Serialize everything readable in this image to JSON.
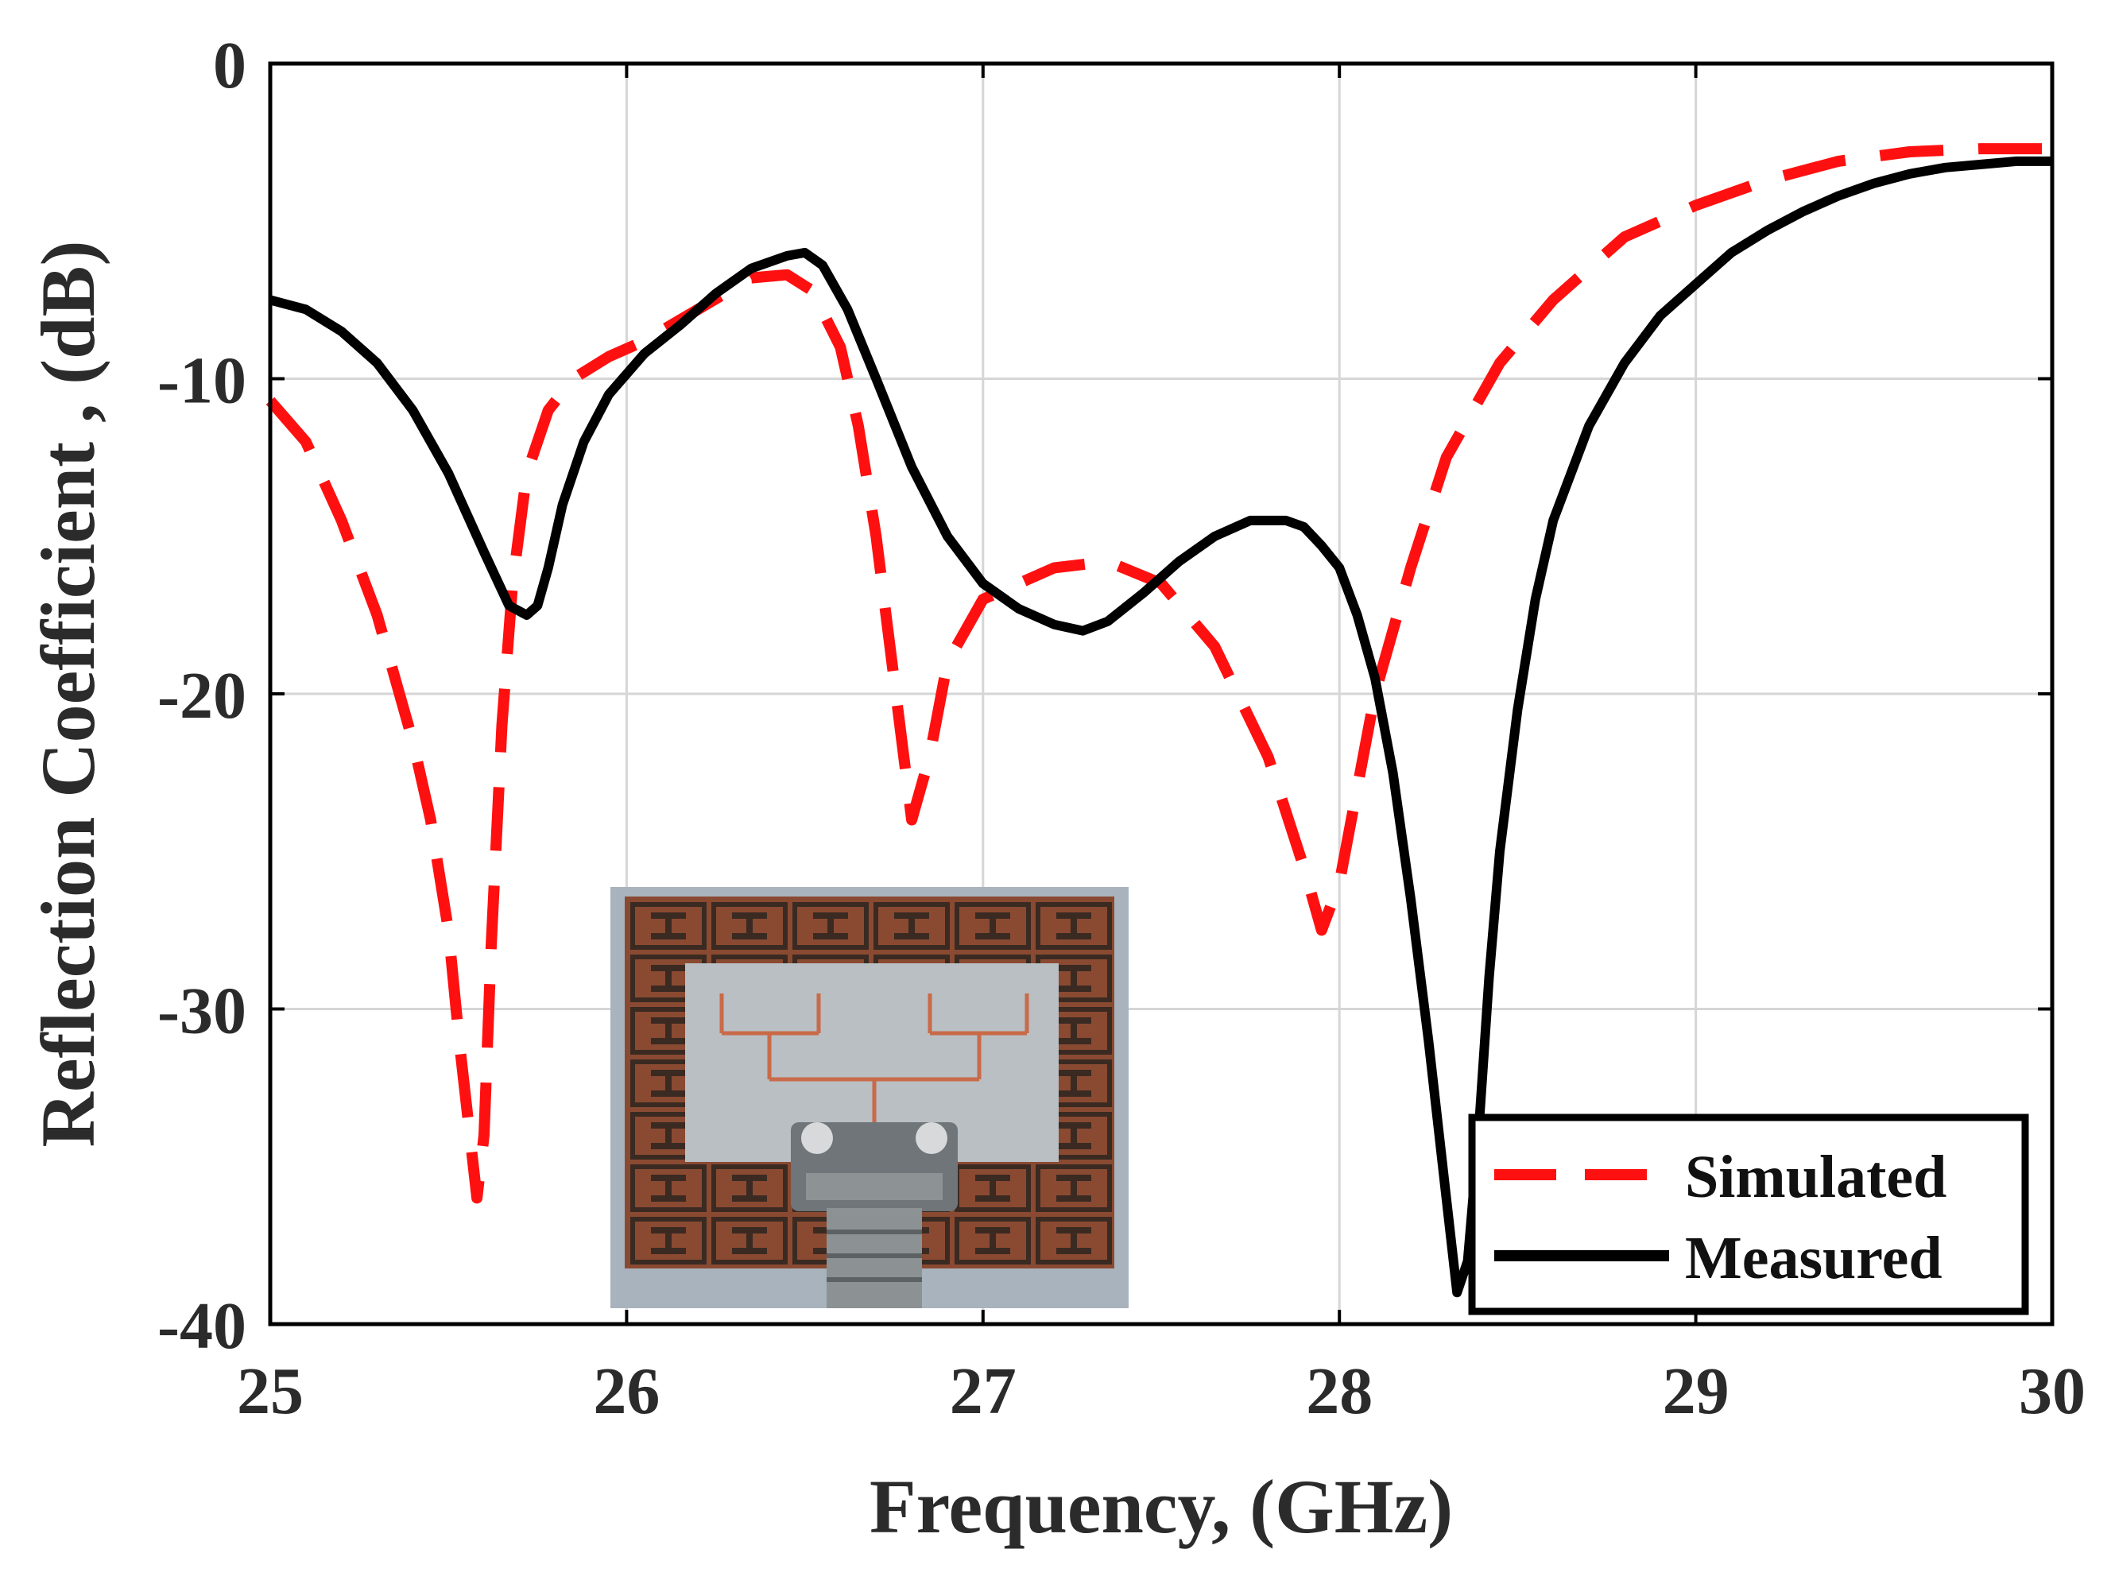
{
  "chart_data": {
    "type": "line",
    "title": "",
    "xlabel": "Frequency, (GHz)",
    "ylabel": "Reflection Coefficient , (dB)",
    "xlim": [
      25,
      30
    ],
    "ylim": [
      -40,
      0
    ],
    "xticks": [
      25,
      26,
      27,
      28,
      29,
      30
    ],
    "yticks": [
      0,
      -10,
      -20,
      -30,
      -40
    ],
    "grid": true,
    "legend_position": "bottom-right",
    "inset_image": "photo of fabricated antenna array prototype with end-launch connector",
    "series": [
      {
        "name": "Simulated",
        "color": "#ff1010",
        "style": "dashed",
        "x": [
          25.0,
          25.1,
          25.2,
          25.3,
          25.4,
          25.45,
          25.5,
          25.53,
          25.56,
          25.58,
          25.6,
          25.62,
          25.65,
          25.68,
          25.72,
          25.78,
          25.85,
          25.95,
          26.05,
          26.2,
          26.35,
          26.45,
          26.52,
          26.6,
          26.65,
          26.7,
          26.75,
          26.8,
          26.85,
          26.9,
          27.0,
          27.1,
          27.2,
          27.35,
          27.5,
          27.65,
          27.8,
          27.9,
          27.95,
          28.0,
          28.05,
          28.1,
          28.2,
          28.3,
          28.45,
          28.6,
          28.8,
          29.0,
          29.2,
          29.4,
          29.6,
          29.8,
          30.0
        ],
        "y": [
          -10.7,
          -12.0,
          -14.5,
          -17.5,
          -21.5,
          -24.0,
          -27.5,
          -31.0,
          -34.0,
          -36.0,
          -34.0,
          -28.0,
          -21.0,
          -16.5,
          -13.0,
          -11.0,
          -10.0,
          -9.3,
          -8.8,
          -7.8,
          -6.8,
          -6.7,
          -7.2,
          -9.0,
          -11.5,
          -15.0,
          -19.5,
          -24.0,
          -22.0,
          -19.0,
          -17.0,
          -16.5,
          -16.0,
          -15.8,
          -16.5,
          -18.5,
          -22.0,
          -25.5,
          -27.5,
          -26.0,
          -23.0,
          -20.0,
          -16.0,
          -12.5,
          -9.5,
          -7.5,
          -5.5,
          -4.5,
          -3.7,
          -3.1,
          -2.8,
          -2.7,
          -2.7
        ]
      },
      {
        "name": "Measured",
        "color": "#000000",
        "style": "solid",
        "x": [
          25.0,
          25.1,
          25.2,
          25.3,
          25.4,
          25.5,
          25.6,
          25.67,
          25.72,
          25.75,
          25.78,
          25.82,
          25.88,
          25.95,
          26.05,
          26.15,
          26.25,
          26.35,
          26.45,
          26.5,
          26.55,
          26.62,
          26.7,
          26.8,
          26.9,
          27.0,
          27.1,
          27.2,
          27.28,
          27.35,
          27.45,
          27.55,
          27.65,
          27.75,
          27.85,
          27.9,
          27.95,
          28.0,
          28.05,
          28.1,
          28.15,
          28.2,
          28.25,
          28.3,
          28.33,
          28.36,
          28.39,
          28.42,
          28.45,
          28.5,
          28.55,
          28.6,
          28.7,
          28.8,
          28.9,
          29.0,
          29.1,
          29.2,
          29.3,
          29.4,
          29.5,
          29.6,
          29.7,
          29.8,
          29.9,
          30.0
        ],
        "y": [
          -7.5,
          -7.8,
          -8.5,
          -9.5,
          -11.0,
          -13.0,
          -15.5,
          -17.2,
          -17.5,
          -17.2,
          -16.0,
          -14.0,
          -12.0,
          -10.5,
          -9.2,
          -8.3,
          -7.3,
          -6.5,
          -6.1,
          -6.0,
          -6.4,
          -7.8,
          -10.0,
          -12.8,
          -15.0,
          -16.5,
          -17.3,
          -17.8,
          -18.0,
          -17.7,
          -16.8,
          -15.8,
          -15.0,
          -14.5,
          -14.5,
          -14.7,
          -15.3,
          -16.0,
          -17.5,
          -19.5,
          -22.5,
          -26.5,
          -31.0,
          -36.0,
          -39.0,
          -38.0,
          -34.0,
          -29.0,
          -25.0,
          -20.5,
          -17.0,
          -14.5,
          -11.5,
          -9.5,
          -8.0,
          -7.0,
          -6.0,
          -5.3,
          -4.7,
          -4.2,
          -3.8,
          -3.5,
          -3.3,
          -3.2,
          -3.1,
          -3.1
        ]
      }
    ]
  }
}
